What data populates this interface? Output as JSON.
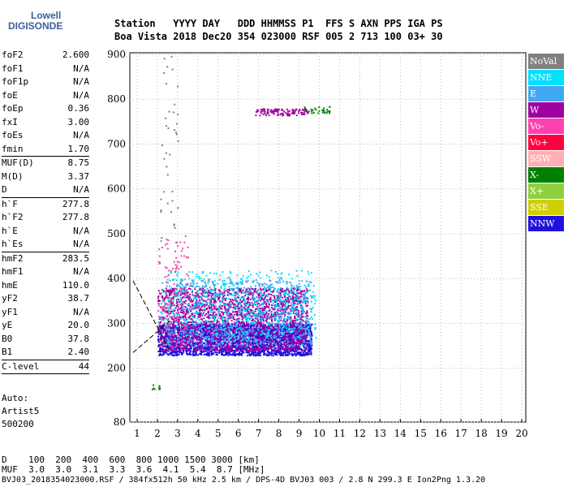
{
  "logo": {
    "line1": "Lowell",
    "line2": "DIGISONDE"
  },
  "header": {
    "row1": "Station   YYYY DAY   DDD HHMMSS P1  FFS S AXN PPS IGA PS",
    "row2": "Boa Vista 2018 Dec20 354 023000 RSF 005 2 713 100 03+ 30"
  },
  "params": [
    {
      "k": "foF2",
      "v": "2.600"
    },
    {
      "k": "foF1",
      "v": "N/A"
    },
    {
      "k": "foF1p",
      "v": "N/A"
    },
    {
      "k": "foE",
      "v": "N/A"
    },
    {
      "k": "foEp",
      "v": "0.36"
    },
    {
      "k": "fxI",
      "v": "3.00"
    },
    {
      "k": "foEs",
      "v": "N/A"
    },
    {
      "k": "fmin",
      "v": "1.70"
    },
    {
      "sep": true
    },
    {
      "k": "MUF(D)",
      "v": "8.75"
    },
    {
      "k": "M(D)",
      "v": "3.37"
    },
    {
      "k": "D",
      "v": "N/A"
    },
    {
      "sep": true
    },
    {
      "k": "h`F",
      "v": "277.8"
    },
    {
      "k": "h`F2",
      "v": "277.8"
    },
    {
      "k": "h`E",
      "v": "N/A"
    },
    {
      "k": "h`Es",
      "v": "N/A"
    },
    {
      "sep": true
    },
    {
      "k": "hmF2",
      "v": "283.5"
    },
    {
      "k": "hmF1",
      "v": "N/A"
    },
    {
      "k": "hmE",
      "v": "110.0"
    },
    {
      "k": "yF2",
      "v": "38.7"
    },
    {
      "k": "yF1",
      "v": "N/A"
    },
    {
      "k": "yE",
      "v": "20.0"
    },
    {
      "k": "B0",
      "v": "37.8"
    },
    {
      "k": "B1",
      "v": "2.40"
    },
    {
      "sep": true
    },
    {
      "k": "C-level",
      "v": "44"
    },
    {
      "sep": true
    }
  ],
  "auto": [
    "Auto:",
    "Artist5",
    "500200"
  ],
  "legend": [
    {
      "label": "NoVal",
      "color": "#808080"
    },
    {
      "label": "NNE",
      "color": "#00e0ff"
    },
    {
      "label": "E",
      "color": "#40a8f0"
    },
    {
      "label": "W",
      "color": "#a000a0"
    },
    {
      "label": "Vo-",
      "color": "#ff40b0"
    },
    {
      "label": "Vo+",
      "color": "#ff0040"
    },
    {
      "label": "SSW",
      "color": "#ffb0b0"
    },
    {
      "label": "X-",
      "color": "#008000"
    },
    {
      "label": "X+",
      "color": "#90d040"
    },
    {
      "label": "SSE",
      "color": "#d0d000"
    },
    {
      "label": "NNW",
      "color": "#2010e0"
    }
  ],
  "bottom": {
    "d_row": "D    100  200  400  600  800 1000 1500 3000 [km]",
    "muf_row": "MUF  3.0  3.0  3.1  3.3  3.6  4.1  5.4  8.7 [MHz]",
    "footer": "BVJ03_2018354023000.RSF / 384fx512h 50 kHz 2.5 km / DPS-4D BVJ03 003 / 2.8 N 299.3 E Ion2Png 1.3.20"
  },
  "chart_data": {
    "type": "scatter",
    "xlabel": "",
    "ylabel": "",
    "xlim": [
      0.8,
      20.0
    ],
    "ylim": [
      80,
      900
    ],
    "x_ticks": [
      1,
      2,
      3,
      4,
      5,
      6,
      7,
      8,
      9,
      10,
      11,
      12,
      13,
      14,
      15,
      16,
      17,
      18,
      19,
      20
    ],
    "y_ticks": [
      80,
      200,
      300,
      400,
      500,
      600,
      700,
      800,
      900
    ],
    "grid": true,
    "series": [
      {
        "color": "#2010e0",
        "clusters": [
          {
            "x": [
              2.0,
              9.6
            ],
            "y": [
              230,
              300
            ],
            "n": 2600
          }
        ]
      },
      {
        "color": "#a000a0",
        "clusters": [
          {
            "x": [
              2.0,
              9.4
            ],
            "y": [
              240,
              380
            ],
            "n": 2200
          },
          {
            "x": [
              6.8,
              9.4
            ],
            "y": [
              765,
              780
            ],
            "n": 120
          }
        ]
      },
      {
        "color": "#40a8f0",
        "clusters": [
          {
            "x": [
              2.0,
              9.6
            ],
            "y": [
              250,
              400
            ],
            "n": 900
          }
        ]
      },
      {
        "color": "#00e0ff",
        "clusters": [
          {
            "x": [
              2.5,
              9.8
            ],
            "y": [
              260,
              420
            ],
            "n": 500
          }
        ]
      },
      {
        "color": "#ff40b0",
        "clusters": [
          {
            "x": [
              2.0,
              3.5
            ],
            "y": [
              240,
              500
            ],
            "n": 120
          }
        ]
      },
      {
        "color": "#008000",
        "clusters": [
          {
            "x": [
              9.2,
              10.5
            ],
            "y": [
              770,
              785
            ],
            "n": 30
          },
          {
            "x": [
              1.7,
              2.1
            ],
            "y": [
              150,
              165
            ],
            "n": 10
          }
        ]
      },
      {
        "color": "#808080",
        "clusters": [
          {
            "x": [
              2.0,
              3.0
            ],
            "y": [
              300,
              900
            ],
            "n": 60
          }
        ]
      }
    ],
    "lines": [
      {
        "type": "dash",
        "x": [
          0.8,
          2.6
        ],
        "y": [
          395,
          240
        ]
      },
      {
        "type": "dash",
        "x": [
          0.8,
          2.6
        ],
        "y": [
          235,
          305
        ]
      }
    ]
  }
}
